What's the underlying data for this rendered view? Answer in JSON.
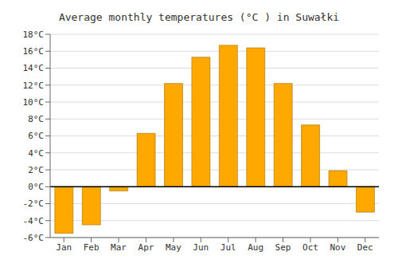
{
  "chart_data": {
    "type": "bar",
    "title": "Average monthly temperatures (°C ) in Suwałki",
    "categories": [
      "Jan",
      "Feb",
      "Mar",
      "Apr",
      "May",
      "Jun",
      "Jul",
      "Aug",
      "Sep",
      "Oct",
      "Nov",
      "Dec"
    ],
    "values": [
      -5.5,
      -4.5,
      -0.5,
      6.3,
      12.2,
      15.3,
      16.7,
      16.4,
      12.2,
      7.3,
      1.9,
      -3.0
    ],
    "color": "#FFA800",
    "ylim": [
      -6,
      18
    ],
    "yticks": [
      {
        "value": -6,
        "label": "-6°C"
      },
      {
        "value": -4,
        "label": "-4°C"
      },
      {
        "value": -2,
        "label": "-2°C"
      },
      {
        "value": 0,
        "label": "0°C"
      },
      {
        "value": 2,
        "label": "2°C"
      },
      {
        "value": 4,
        "label": "4°C"
      },
      {
        "value": 6,
        "label": "6°C"
      },
      {
        "value": 8,
        "label": "8°C"
      },
      {
        "value": 10,
        "label": "10°C"
      },
      {
        "value": 12,
        "label": "12°C"
      },
      {
        "value": 14,
        "label": "14°C"
      },
      {
        "value": 16,
        "label": "16°C"
      },
      {
        "value": 18,
        "label": "18°C"
      }
    ],
    "grid": true
  }
}
